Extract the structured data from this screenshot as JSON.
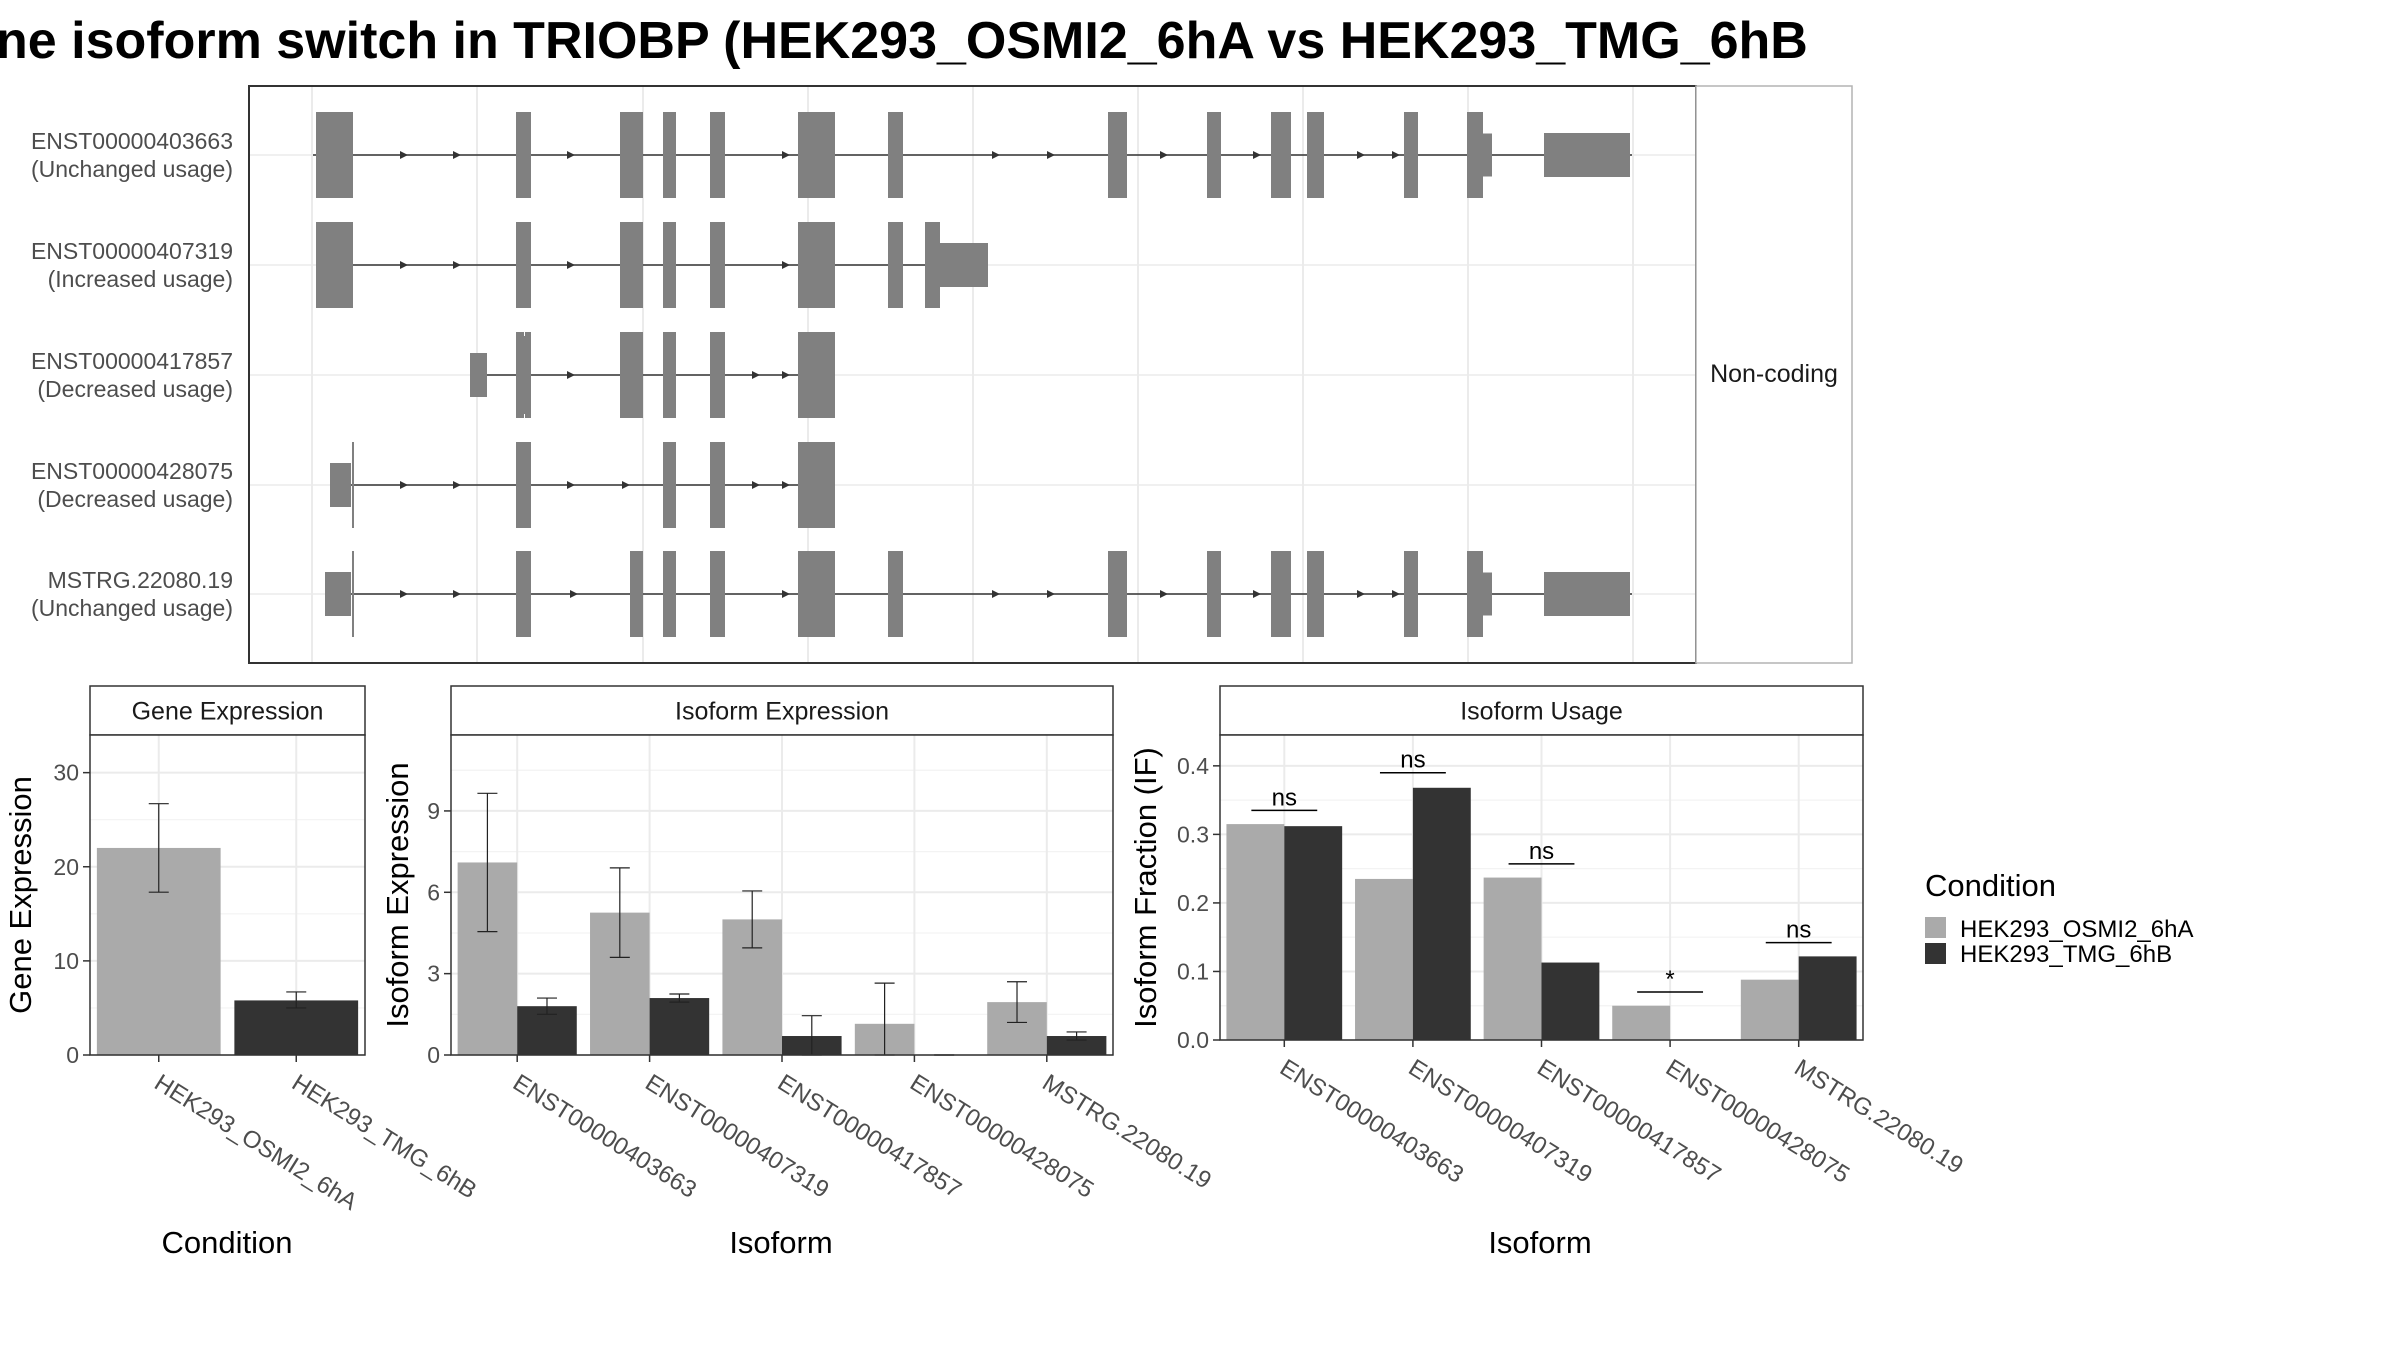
{
  "title": "ne isoform switch in TRIOBP (HEK293_OSMI2_6hA vs HEK293_TMG_6hB",
  "colors": {
    "condA": "#aaaaaa",
    "condB": "#333333",
    "exon": "#808080",
    "grid": "#ebebeb",
    "stripFill": "#ffffff"
  },
  "chart_data": [
    {
      "type": "gene-structure",
      "panel": "transcript-structure",
      "facet_label": "Non-coding",
      "isoforms": [
        {
          "id": "ENST00000403663",
          "status": "(Unchanged usage)",
          "strand_arrows": true
        },
        {
          "id": "ENST00000407319",
          "status": "(Increased usage)",
          "strand_arrows": true
        },
        {
          "id": "ENST00000417857",
          "status": "(Decreased usage)",
          "strand_arrows": true
        },
        {
          "id": "ENST00000428075",
          "status": "(Decreased usage)",
          "strand_arrows": true
        },
        {
          "id": "MSTRG.22080.19",
          "status": "(Unchanged usage)",
          "strand_arrows": true
        }
      ]
    },
    {
      "type": "bar",
      "panel": "gene-expression",
      "strip": "Gene Expression",
      "xlabel": "Condition",
      "ylabel": "Gene Expression",
      "ylim": [
        0,
        34
      ],
      "yticks": [
        0,
        10,
        20,
        30
      ],
      "categories": [
        "HEK293_OSMI2_6hA",
        "HEK293_TMG_6hB"
      ],
      "values": [
        22.0,
        5.8
      ],
      "errors": [
        [
          17.3,
          26.7
        ],
        [
          5.0,
          6.7
        ]
      ],
      "bar_conditions": [
        0,
        1
      ]
    },
    {
      "type": "bar",
      "panel": "isoform-expression",
      "strip": "Isoform Expression",
      "xlabel": "Isoform",
      "ylabel": "Isoform Expression",
      "ylim": [
        0,
        11.8
      ],
      "yticks": [
        0,
        3,
        6,
        9
      ],
      "categories": [
        "ENST00000403663",
        "ENST00000407319",
        "ENST00000417857",
        "ENST00000428075",
        "MSTRG.22080.19"
      ],
      "series": [
        {
          "name": "HEK293_OSMI2_6hA",
          "values": [
            7.1,
            5.25,
            5.0,
            1.15,
            1.95
          ],
          "errors": [
            [
              4.55,
              9.65
            ],
            [
              3.6,
              6.9
            ],
            [
              3.95,
              6.05
            ],
            [
              0.0,
              2.65
            ],
            [
              1.2,
              2.7
            ]
          ]
        },
        {
          "name": "HEK293_TMG_6hB",
          "values": [
            1.8,
            2.1,
            0.7,
            0.0,
            0.7
          ],
          "errors": [
            [
              1.5,
              2.1
            ],
            [
              1.95,
              2.25
            ],
            [
              0.0,
              1.45
            ],
            [
              0.0,
              0.0
            ],
            [
              0.55,
              0.85
            ]
          ]
        }
      ]
    },
    {
      "type": "bar",
      "panel": "isoform-usage",
      "strip": "Isoform Usage",
      "xlabel": "Isoform",
      "ylabel": "Isoform Fraction (IF)",
      "ylim": [
        0,
        0.445
      ],
      "yticks": [
        "0.0",
        "0.1",
        "0.2",
        "0.3",
        "0.4"
      ],
      "categories": [
        "ENST00000403663",
        "ENST00000407319",
        "ENST00000417857",
        "ENST00000428075",
        "MSTRG.22080.19"
      ],
      "series": [
        {
          "name": "HEK293_OSMI2_6hA",
          "values": [
            0.315,
            0.235,
            0.237,
            0.05,
            0.088
          ]
        },
        {
          "name": "HEK293_TMG_6hB",
          "values": [
            0.312,
            0.368,
            0.113,
            0.0,
            0.122
          ]
        }
      ],
      "significance": [
        "ns",
        "ns",
        "ns",
        "*",
        "ns"
      ],
      "sig_levels": [
        0.335,
        0.39,
        0.257,
        0.07,
        0.142
      ]
    }
  ],
  "legend": {
    "title": "Condition",
    "items": [
      "HEK293_OSMI2_6hA",
      "HEK293_TMG_6hB"
    ]
  }
}
